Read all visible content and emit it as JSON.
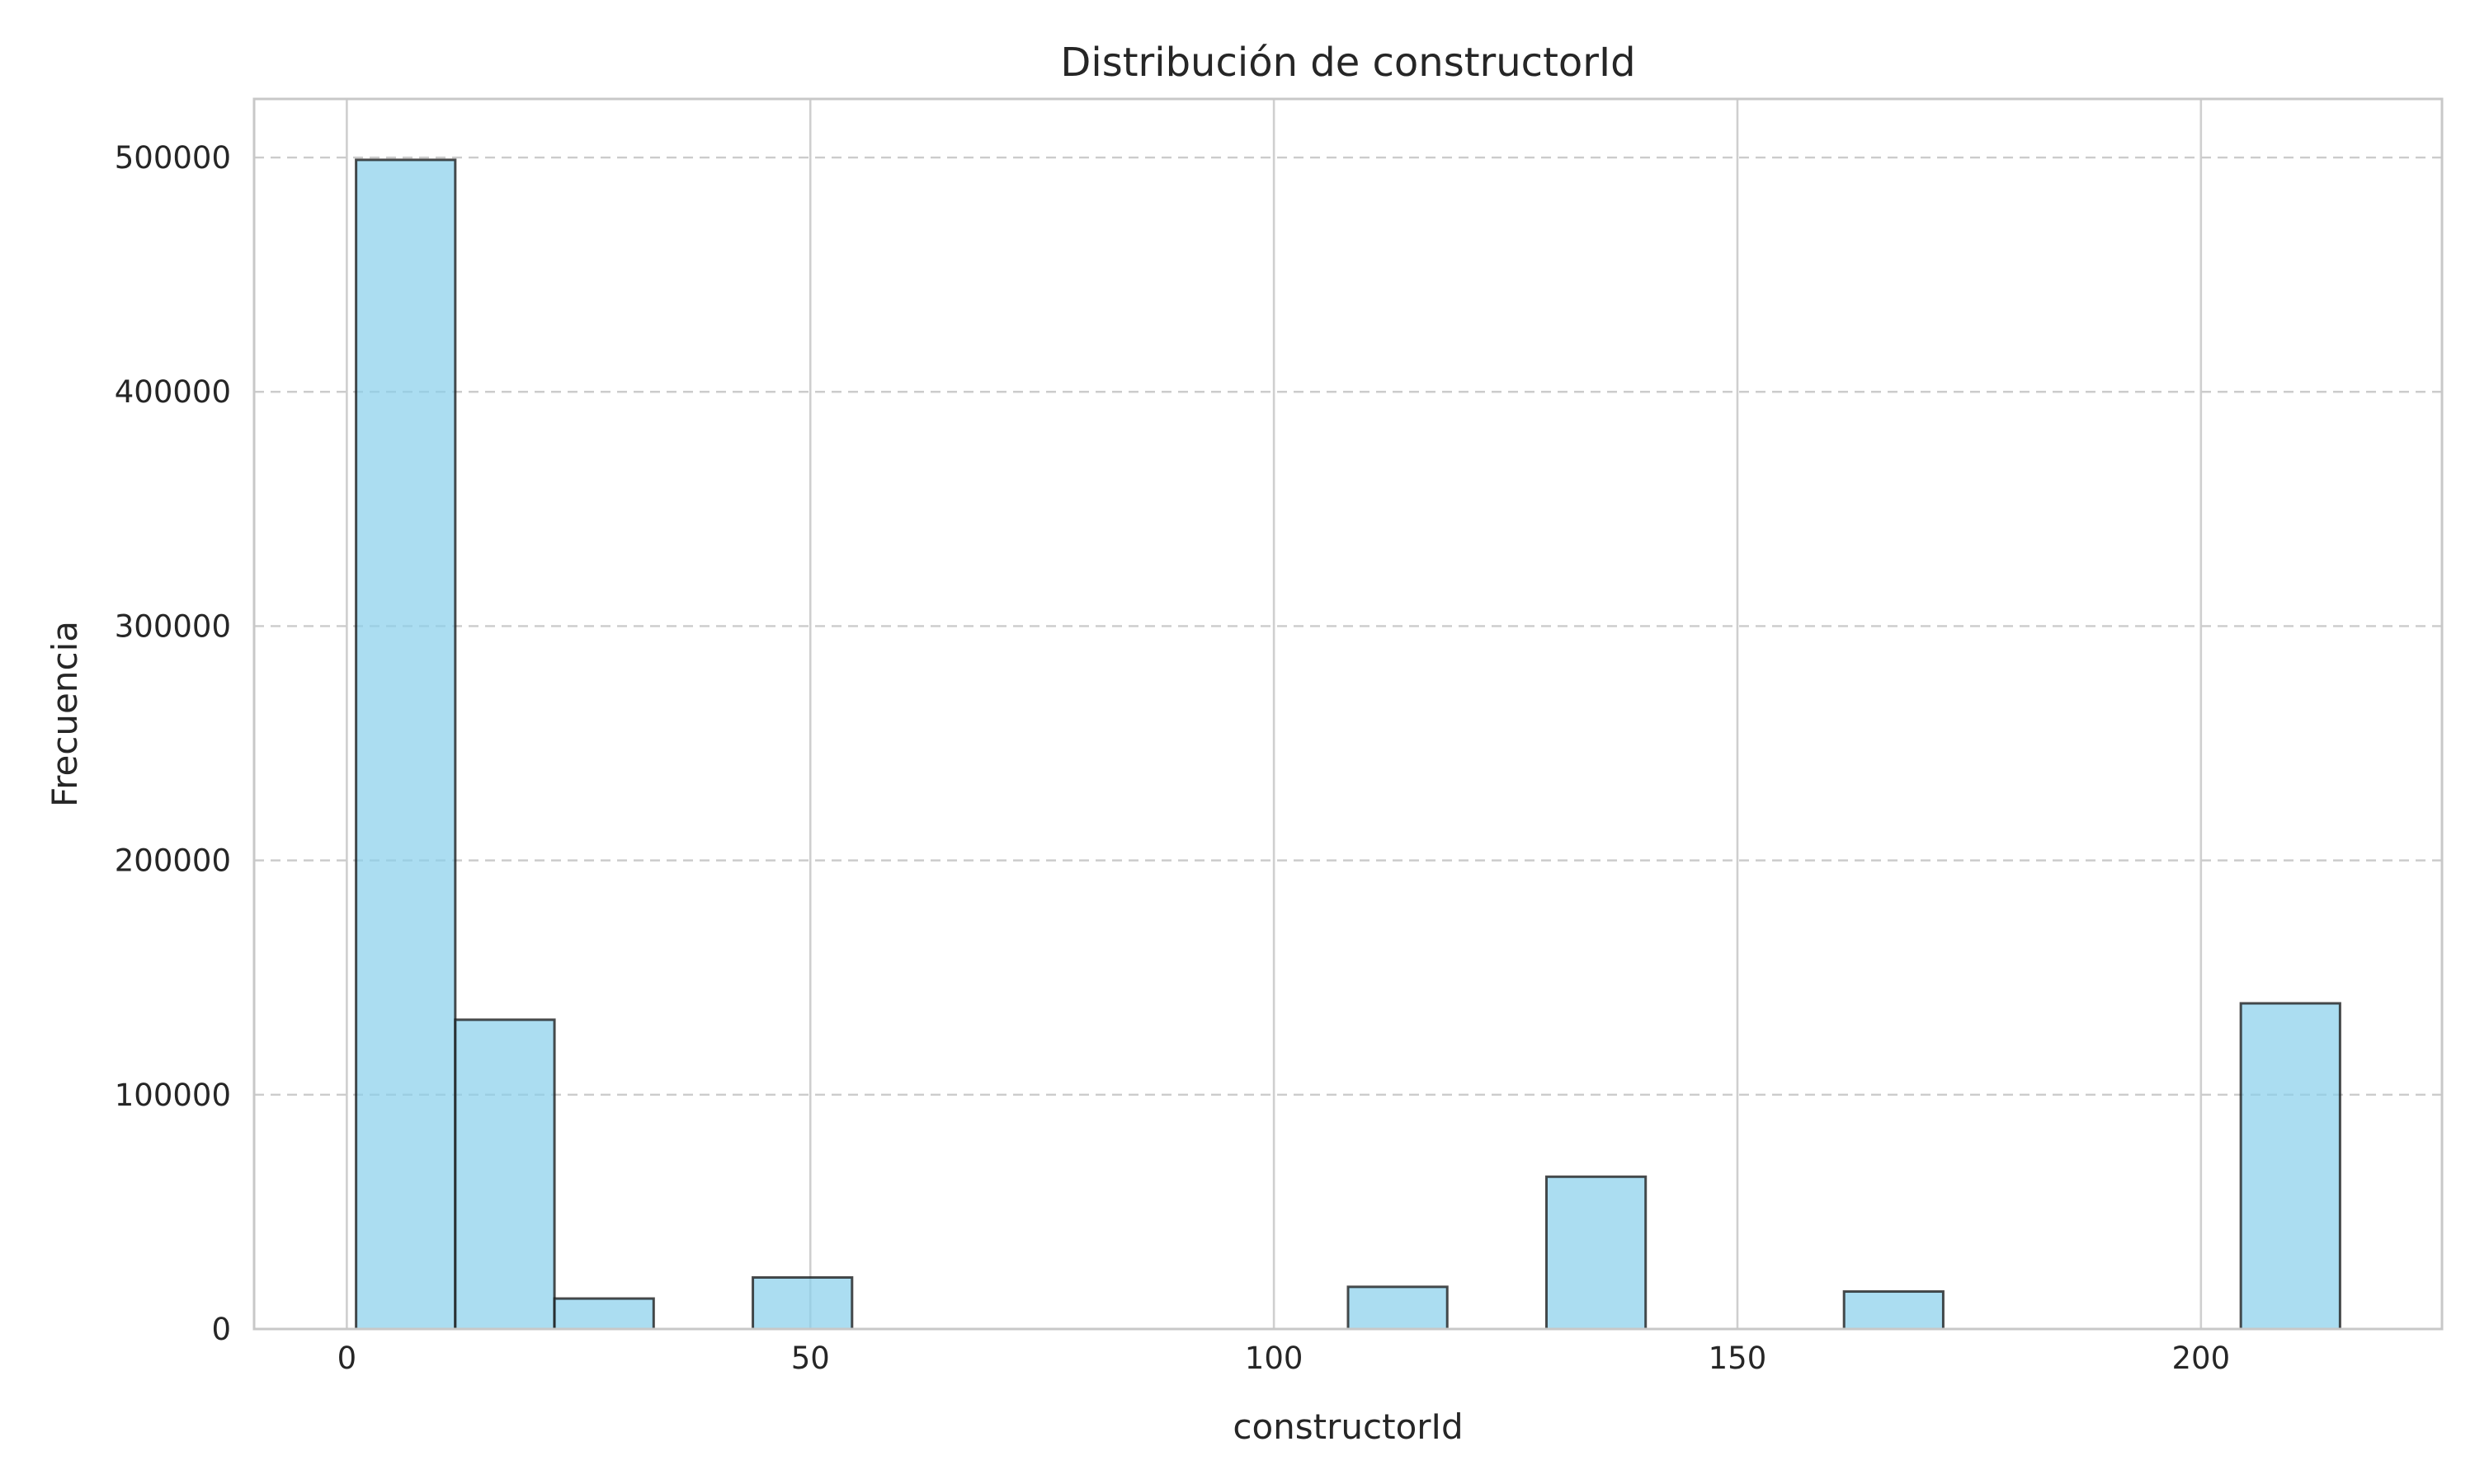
{
  "chart_data": {
    "type": "bar",
    "subtype": "histogram",
    "title": "Distribución de constructorId",
    "xlabel": "constructorId",
    "ylabel": "Frecuencia",
    "xlim": [
      -10,
      226
    ],
    "ylim": [
      0,
      525000
    ],
    "xticks": [
      0,
      50,
      100,
      150,
      200
    ],
    "yticks": [
      0,
      100000,
      200000,
      300000,
      400000,
      500000
    ],
    "grid": {
      "x": true,
      "y": true,
      "y_style": "dashed"
    },
    "bin_start": 1,
    "bin_width": 10.7,
    "bins": [
      {
        "x0": 1.0,
        "x1": 11.7,
        "count": 499000
      },
      {
        "x0": 11.7,
        "x1": 22.4,
        "count": 132000
      },
      {
        "x0": 22.4,
        "x1": 33.1,
        "count": 13000
      },
      {
        "x0": 33.1,
        "x1": 43.8,
        "count": 0
      },
      {
        "x0": 43.8,
        "x1": 54.5,
        "count": 22000
      },
      {
        "x0": 54.5,
        "x1": 65.2,
        "count": 0
      },
      {
        "x0": 65.2,
        "x1": 75.9,
        "count": 0
      },
      {
        "x0": 75.9,
        "x1": 86.6,
        "count": 0
      },
      {
        "x0": 86.6,
        "x1": 97.3,
        "count": 0
      },
      {
        "x0": 97.3,
        "x1": 108.0,
        "count": 0
      },
      {
        "x0": 108.0,
        "x1": 118.7,
        "count": 18000
      },
      {
        "x0": 118.7,
        "x1": 129.4,
        "count": 0
      },
      {
        "x0": 129.4,
        "x1": 140.1,
        "count": 65000
      },
      {
        "x0": 140.1,
        "x1": 150.8,
        "count": 0
      },
      {
        "x0": 150.8,
        "x1": 161.5,
        "count": 0
      },
      {
        "x0": 161.5,
        "x1": 172.2,
        "count": 16000
      },
      {
        "x0": 172.2,
        "x1": 182.9,
        "count": 0
      },
      {
        "x0": 182.9,
        "x1": 193.6,
        "count": 0
      },
      {
        "x0": 193.6,
        "x1": 204.3,
        "count": 0
      },
      {
        "x0": 204.3,
        "x1": 215.0,
        "count": 139000
      }
    ],
    "colors": {
      "bar_fill": "#87ceeb",
      "bar_edge": "#1a1a1a",
      "grid": "#cccccc",
      "frame": "#c8c8c8",
      "text": "#262626"
    }
  }
}
